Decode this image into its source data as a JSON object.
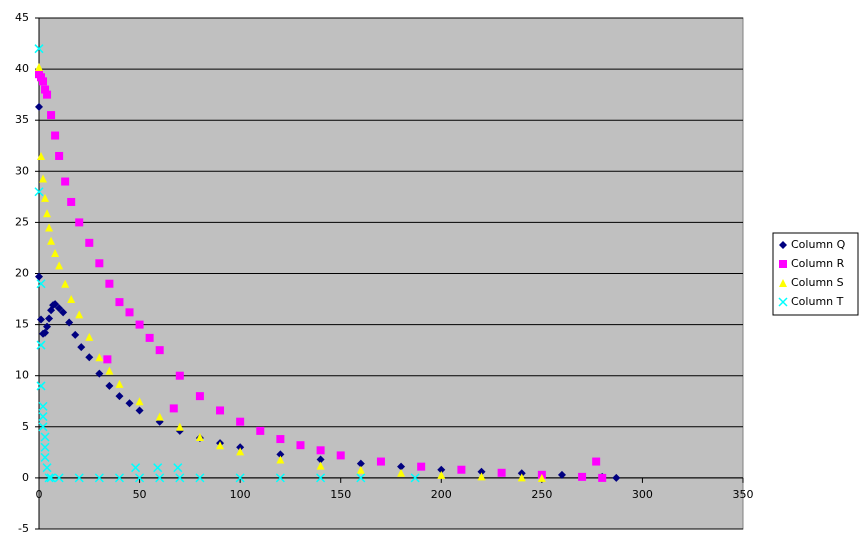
{
  "chart_data": {
    "type": "scatter",
    "xlim": [
      0,
      350
    ],
    "xticks": [
      0,
      50,
      100,
      150,
      200,
      250,
      300,
      350
    ],
    "ylim": [
      -5,
      45
    ],
    "yticks": [
      -5,
      0,
      5,
      10,
      15,
      20,
      25,
      30,
      35,
      40,
      45
    ],
    "grid": true,
    "legend": "right",
    "series": [
      {
        "name": "Column Q",
        "color": "#000080",
        "marker": "diamond",
        "x": [
          0,
          0,
          1,
          2,
          3,
          4,
          5,
          6,
          7,
          8,
          10,
          12,
          15,
          18,
          21,
          25,
          30,
          35,
          40,
          45,
          50,
          60,
          70,
          80,
          90,
          100,
          120,
          140,
          160,
          180,
          200,
          220,
          240,
          260,
          280,
          287
        ],
        "values": [
          36.3,
          19.7,
          15.5,
          14.1,
          14.2,
          14.8,
          15.6,
          16.4,
          16.9,
          17,
          16.6,
          16.2,
          15.2,
          14,
          12.8,
          11.8,
          10.2,
          9,
          8,
          7.3,
          6.6,
          5.5,
          4.6,
          3.9,
          3.4,
          3,
          2.3,
          1.8,
          1.4,
          1.1,
          0.8,
          0.6,
          0.45,
          0.3,
          0.1,
          0
        ]
      },
      {
        "name": "Column R",
        "color": "#ff00ff",
        "marker": "square",
        "x": [
          0,
          1,
          2,
          3,
          4,
          6,
          8,
          10,
          13,
          16,
          20,
          25,
          30,
          34,
          35,
          40,
          45,
          50,
          55,
          60,
          67,
          70,
          80,
          90,
          100,
          110,
          120,
          130,
          140,
          150,
          170,
          190,
          210,
          230,
          250,
          270,
          277,
          280
        ],
        "values": [
          39.5,
          39.2,
          38.8,
          38,
          37.5,
          35.5,
          33.5,
          31.5,
          29,
          27,
          25,
          23,
          21,
          11.6,
          19,
          17.2,
          16.2,
          15,
          13.7,
          12.5,
          6.8,
          10,
          8,
          6.6,
          5.5,
          4.6,
          3.8,
          3.2,
          2.7,
          2.2,
          1.6,
          1.1,
          0.8,
          0.5,
          0.3,
          0.1,
          1.6,
          0
        ]
      },
      {
        "name": "Column S",
        "color": "#ffff00",
        "marker": "triangle",
        "x": [
          0,
          1,
          2,
          3,
          4,
          5,
          6,
          8,
          10,
          13,
          16,
          20,
          25,
          30,
          35,
          40,
          50,
          60,
          70,
          80,
          90,
          100,
          120,
          140,
          160,
          180,
          200,
          220,
          240,
          250
        ],
        "values": [
          40.2,
          31.5,
          29.3,
          27.4,
          25.9,
          24.5,
          23.2,
          22,
          20.8,
          19,
          17.5,
          16,
          13.8,
          11.8,
          10.5,
          9.2,
          7.5,
          6,
          5,
          4,
          3.2,
          2.6,
          1.8,
          1.2,
          0.8,
          0.5,
          0.3,
          0.15,
          0.05,
          0
        ]
      },
      {
        "name": "Column T",
        "color": "#00ffff",
        "marker": "x",
        "x": [
          0,
          0,
          1,
          1,
          1,
          2,
          2,
          2,
          3,
          3,
          3,
          4,
          5,
          6,
          10,
          20,
          30,
          40,
          48,
          50,
          59,
          60,
          69,
          70,
          80,
          100,
          120,
          140,
          160,
          187
        ],
        "values": [
          42,
          28,
          19,
          13,
          9,
          7,
          6,
          5,
          4,
          3,
          2,
          1,
          0,
          0,
          0,
          0,
          0,
          0,
          1,
          0,
          1,
          0,
          1,
          0,
          0,
          0,
          0,
          0,
          0,
          0
        ]
      }
    ]
  }
}
